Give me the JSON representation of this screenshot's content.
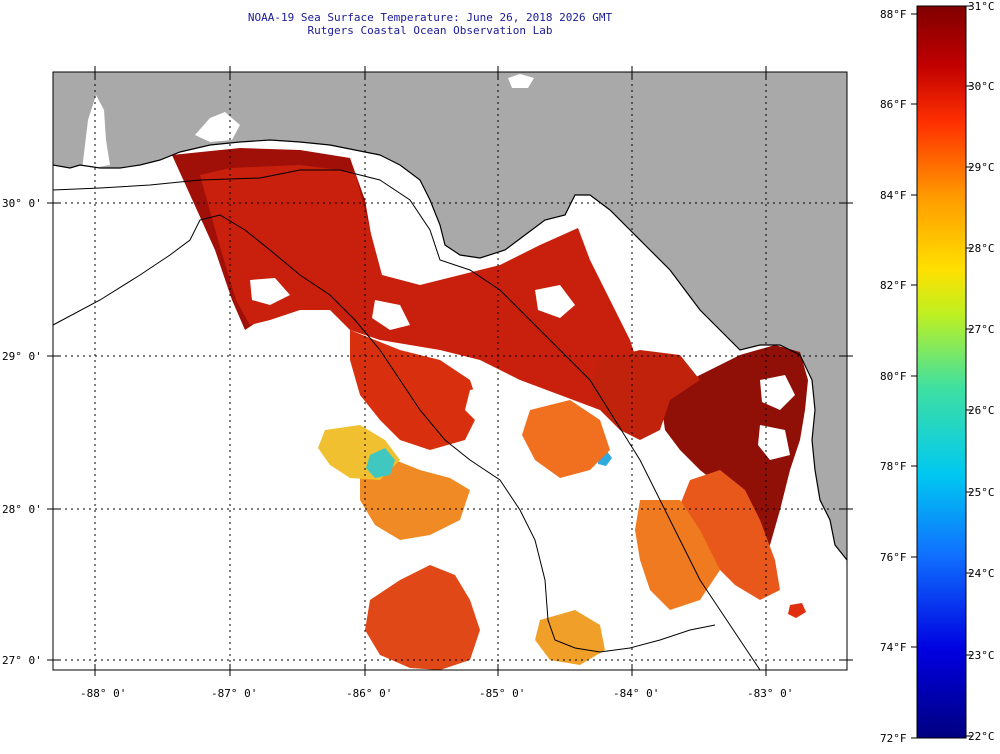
{
  "title": {
    "line1": "NOAA-19 Sea Surface Temperature:  June 26, 2018 2026 GMT",
    "line2": "Rutgers Coastal Ocean Observation Lab"
  },
  "axes": {
    "lon_labels": [
      "-88° 0'",
      "-87° 0'",
      "-86° 0'",
      "-85° 0'",
      "-84° 0'",
      "-83° 0'"
    ],
    "lat_labels": [
      "30° 0'",
      "29° 0'",
      "28° 0'",
      "27° 0'"
    ]
  },
  "colorbar": {
    "fahrenheit_labels": [
      "88°F",
      "86°F",
      "84°F",
      "82°F",
      "80°F",
      "78°F",
      "76°F",
      "74°F",
      "72°F"
    ],
    "celsius_labels": [
      "31°C",
      "30°C",
      "29°C",
      "28°C",
      "27°C",
      "26°C",
      "25°C",
      "24°C",
      "23°C",
      "22°C"
    ]
  },
  "colors": {
    "land": "#a9a9a9",
    "sst_hot": "#8b0a0a",
    "sst_red": "#d42a10",
    "sst_orange": "#f07a20",
    "sst_yellow": "#f0c020",
    "sst_cyan": "#40d0c0"
  }
}
